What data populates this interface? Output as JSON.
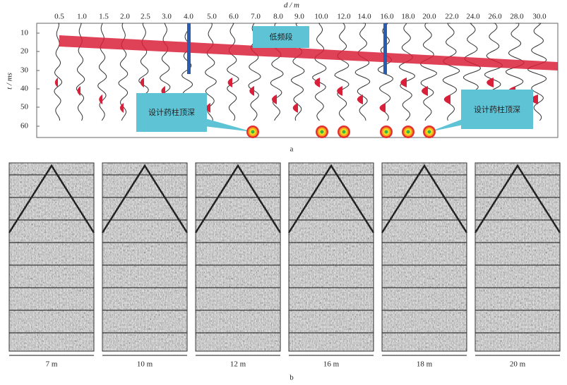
{
  "panel_a": {
    "x_axis_title": "d / m",
    "y_axis_title": "t / ms",
    "x_labels": [
      "0.5",
      "1.0",
      "1.5",
      "2.0",
      "2.5",
      "3.0",
      "4.0",
      "5.0",
      "6.0",
      "7.0",
      "8.0",
      "9.0",
      "10.0",
      "12.0",
      "14.0",
      "16.0",
      "18.0",
      "20.0",
      "22.0",
      "24.0",
      "26.0",
      "28.0",
      "30.0"
    ],
    "y_labels": [
      "10",
      "20",
      "30",
      "40",
      "50",
      "60"
    ],
    "band_label": "低频段",
    "callout_left": "设计药柱顶深",
    "callout_right": "设计药柱顶深",
    "caption": "a"
  },
  "panel_b": {
    "captions": [
      "7 m",
      "10 m",
      "12 m",
      "16 m",
      "18 m",
      "20 m"
    ],
    "caption": "b"
  }
}
